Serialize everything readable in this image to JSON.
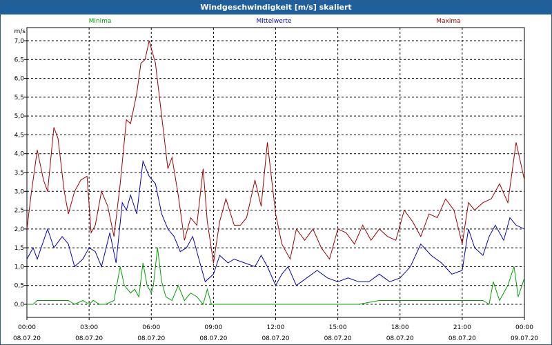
{
  "window": {
    "title": "Windgeschwindigkeit [m/s] skaliert"
  },
  "chart_data": {
    "type": "line",
    "title": "Windgeschwindigkeit [m/s] skaliert",
    "ylabel": "m/s",
    "xlabel": "",
    "ylim": [
      -0.4,
      7.3
    ],
    "grid": true,
    "y_ticks": [
      "0,0",
      "0,5",
      "1,0",
      "1,5",
      "2,0",
      "2,5",
      "3,0",
      "3,5",
      "4,0",
      "4,5",
      "5,0",
      "5,5",
      "6,0",
      "6,5",
      "7,0"
    ],
    "x_ticks": [
      {
        "time": "00:00",
        "date": "08.07.20"
      },
      {
        "time": "03:00",
        "date": "08.07.20"
      },
      {
        "time": "06:00",
        "date": "08.07.20"
      },
      {
        "time": "09:00",
        "date": "08.07.20"
      },
      {
        "time": "12:00",
        "date": "08.07.20"
      },
      {
        "time": "15:00",
        "date": "08.07.20"
      },
      {
        "time": "18:00",
        "date": "08.07.20"
      },
      {
        "time": "21:00",
        "date": "08.07.20"
      },
      {
        "time": "00:00",
        "date": "09.07.20"
      }
    ],
    "x_unit": "hours since 08.07.20 00:00",
    "series": [
      {
        "name": "Minima",
        "color": "#00a000",
        "x": [
          0,
          0.3,
          0.5,
          1,
          1.5,
          2,
          2.3,
          2.7,
          3.0,
          3.2,
          3.5,
          3.8,
          4.2,
          4.5,
          4.7,
          5.0,
          5.2,
          5.4,
          5.6,
          5.8,
          6.0,
          6.1,
          6.3,
          6.5,
          6.7,
          7.0,
          7.3,
          7.6,
          7.9,
          8.2,
          8.5,
          8.7,
          8.9,
          9.3,
          12,
          16,
          17,
          20,
          21,
          22,
          22.3,
          22.5,
          22.8,
          23.2,
          23.5,
          23.7,
          24
        ],
        "y": [
          0.0,
          0.0,
          0.1,
          0.1,
          0.1,
          0.1,
          0.0,
          0.1,
          0.0,
          0.1,
          0.0,
          0.0,
          0.1,
          1.0,
          0.5,
          0.3,
          0.4,
          0.2,
          1.1,
          0.5,
          0.3,
          0.5,
          1.5,
          0.6,
          0.2,
          0.1,
          0.5,
          0.1,
          0.3,
          0.2,
          0.0,
          0.4,
          0.0,
          0.0,
          0.0,
          0.0,
          0.1,
          0.1,
          0.1,
          0.1,
          0.0,
          0.6,
          0.1,
          0.5,
          1.0,
          0.2,
          0.7
        ]
      },
      {
        "name": "Mittelwerte",
        "color": "#0000c0",
        "x": [
          0,
          0.3,
          0.5,
          1,
          1.3,
          1.7,
          2,
          2.3,
          2.7,
          3.0,
          3.3,
          3.6,
          4.0,
          4.3,
          4.6,
          4.8,
          5.0,
          5.3,
          5.6,
          5.9,
          6.2,
          6.5,
          6.8,
          7.1,
          7.4,
          7.7,
          8.0,
          8.3,
          8.6,
          9.0,
          9.3,
          9.7,
          10,
          10.5,
          11,
          11.3,
          11.6,
          12,
          12.3,
          12.6,
          13,
          13.5,
          14,
          14.5,
          15,
          15.5,
          16,
          16.5,
          17,
          17.5,
          18,
          18.5,
          19,
          19.5,
          20,
          20.5,
          21,
          21.3,
          21.6,
          22,
          22.3,
          22.6,
          23,
          23.3,
          23.6,
          24
        ],
        "y": [
          1.2,
          1.5,
          1.2,
          2.0,
          1.5,
          1.8,
          1.6,
          1.0,
          1.2,
          1.5,
          1.4,
          1.0,
          1.9,
          1.1,
          2.7,
          2.5,
          2.9,
          2.4,
          3.8,
          3.4,
          3.2,
          2.4,
          2.0,
          1.8,
          1.4,
          1.5,
          1.8,
          1.2,
          0.6,
          0.8,
          1.3,
          1.1,
          1.2,
          1.1,
          1.0,
          1.3,
          1.0,
          0.5,
          0.8,
          1.0,
          0.5,
          0.7,
          0.9,
          0.7,
          0.6,
          0.7,
          0.6,
          0.6,
          0.8,
          0.6,
          0.7,
          1.0,
          1.6,
          1.3,
          1.1,
          0.8,
          0.9,
          2.0,
          1.5,
          1.3,
          1.8,
          2.1,
          1.7,
          2.3,
          2.1,
          2.0
        ]
      },
      {
        "name": "Maxima",
        "color": "#a00000",
        "x": [
          0,
          0.2,
          0.5,
          0.8,
          1.0,
          1.3,
          1.5,
          1.8,
          2.0,
          2.3,
          2.6,
          2.9,
          3.1,
          3.3,
          3.6,
          3.9,
          4.2,
          4.5,
          4.8,
          5.0,
          5.3,
          5.5,
          5.7,
          5.9,
          6.2,
          6.5,
          6.8,
          7.0,
          7.3,
          7.6,
          7.9,
          8.2,
          8.5,
          8.7,
          9.0,
          9.3,
          9.6,
          10,
          10.3,
          10.6,
          11,
          11.3,
          11.6,
          12,
          12.3,
          12.7,
          13,
          13.4,
          13.8,
          14.2,
          14.6,
          15,
          15.4,
          15.8,
          16.2,
          16.6,
          17,
          17.4,
          17.8,
          18.2,
          18.6,
          19,
          19.4,
          19.8,
          20.2,
          20.6,
          21,
          21.3,
          21.6,
          22,
          22.4,
          22.8,
          23.2,
          23.6,
          24
        ],
        "y": [
          2.0,
          2.9,
          4.1,
          3.3,
          3.0,
          4.7,
          4.4,
          3.0,
          2.4,
          3.0,
          3.3,
          3.4,
          1.9,
          2.1,
          3.0,
          2.6,
          1.8,
          3.2,
          4.9,
          4.8,
          5.6,
          6.4,
          6.5,
          7.0,
          6.4,
          5.0,
          3.6,
          3.9,
          2.9,
          1.7,
          2.3,
          2.1,
          3.6,
          2.2,
          1.1,
          2.2,
          2.8,
          2.1,
          2.1,
          2.3,
          3.3,
          2.6,
          4.3,
          2.4,
          1.6,
          1.2,
          2.0,
          1.7,
          2.0,
          1.5,
          1.2,
          2.0,
          1.9,
          1.6,
          2.1,
          1.7,
          2.0,
          1.8,
          1.7,
          2.5,
          2.2,
          1.8,
          2.4,
          2.3,
          2.8,
          2.5,
          1.6,
          2.7,
          2.5,
          2.7,
          2.8,
          3.2,
          2.7,
          4.3,
          3.3
        ]
      }
    ]
  }
}
